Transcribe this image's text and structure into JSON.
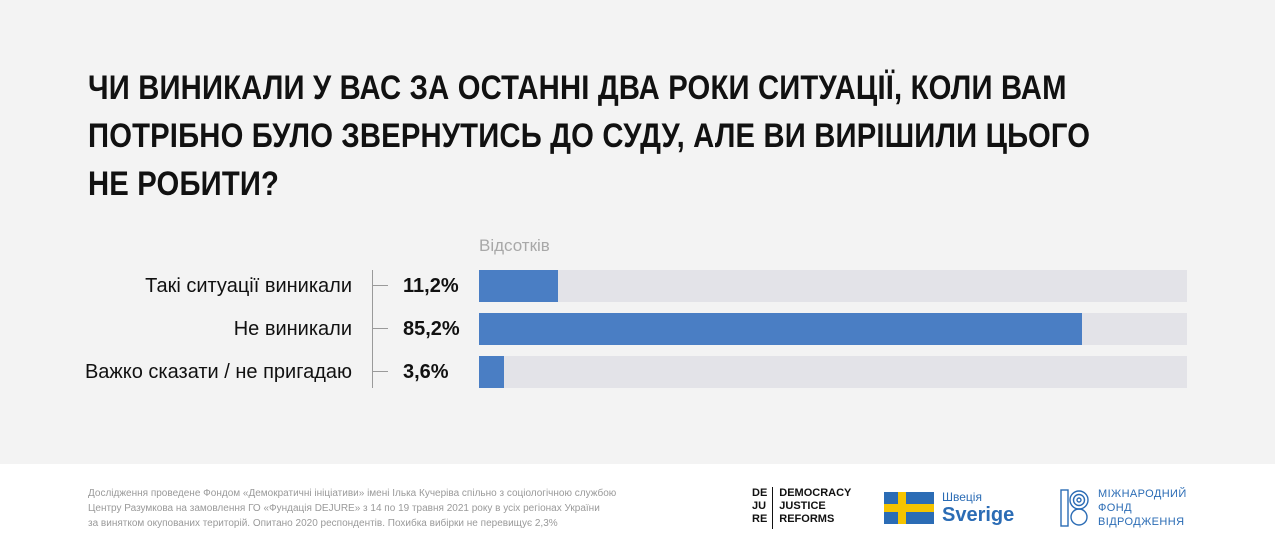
{
  "title": "ЧИ ВИНИКАЛИ У ВАС ЗА ОСТАННІ ДВА РОКИ СИТУАЦІЇ, КОЛИ ВАМ ПОТРІБНО БУЛО ЗВЕРНУТИСЬ ДО СУДУ, АЛЕ ВИ ВИРІШИЛИ ЦЬОГО НЕ РОБИТИ?",
  "title_lines": [
    "ЧИ ВИНИКАЛИ У ВАС ЗА ОСТАННІ ДВА РОКИ СИТУАЦІЇ, КОЛИ ВАМ",
    "ПОТРІБНО БУЛО ЗВЕРНУТИСЬ ДО СУДУ, АЛЕ ВИ ВИРІШИЛИ ЦЬОГО",
    "НЕ РОБИТИ?"
  ],
  "chart_data": {
    "type": "bar",
    "orientation": "horizontal",
    "title": "ЧИ ВИНИКАЛИ У ВАС ЗА ОСТАННІ ДВА РОКИ СИТУАЦІЇ, КОЛИ ВАМ ПОТРІБНО БУЛО ЗВЕРНУТИСЬ ДО СУДУ, АЛЕ ВИ ВИРІШИЛИ ЦЬОГО НЕ РОБИТИ?",
    "unit_label": "Відсотків",
    "categories": [
      "Такі ситуації виникали",
      "Не виникали",
      "Важко сказати / не пригадаю"
    ],
    "values": [
      11.2,
      85.2,
      3.6
    ],
    "value_labels": [
      "11,2%",
      "85,2%",
      "3,6%"
    ],
    "xlim": [
      0,
      100
    ],
    "grid": false,
    "legend": "none",
    "bar_color": "#4a7ec4",
    "track_color": "#e3e3e8"
  },
  "footer": {
    "note_lines": [
      "Дослідження проведене Фондом «Демократичні ініціативи» імені Ілька Кучеріва спільно з соціологічною службою",
      "Центру Разумкова на замовлення ГО «Фундація DEJURE» з 14 по 19 травня 2021 року в усіх регіонах України",
      "за винятком окупованих територій. Опитано 2020 респондентів. Похибка вибірки не перевищує 2,3%"
    ]
  },
  "logos": {
    "dejure": {
      "col1": [
        "DE",
        "JU",
        "RE"
      ],
      "col2": [
        "DEMOCRACY",
        "JUSTICE",
        "REFORMS"
      ]
    },
    "sweden": {
      "small": "Швеція",
      "big": "Sverige"
    },
    "irf": {
      "lines": [
        "МІЖНАРОДНИЙ",
        "ФОНД",
        "ВІДРОДЖЕННЯ"
      ]
    }
  },
  "colors": {
    "background_panel": "#f3f3f3",
    "accent": "#4a7ec4",
    "brand_blue": "#2b6cb5",
    "flag_yellow": "#f5c400"
  }
}
